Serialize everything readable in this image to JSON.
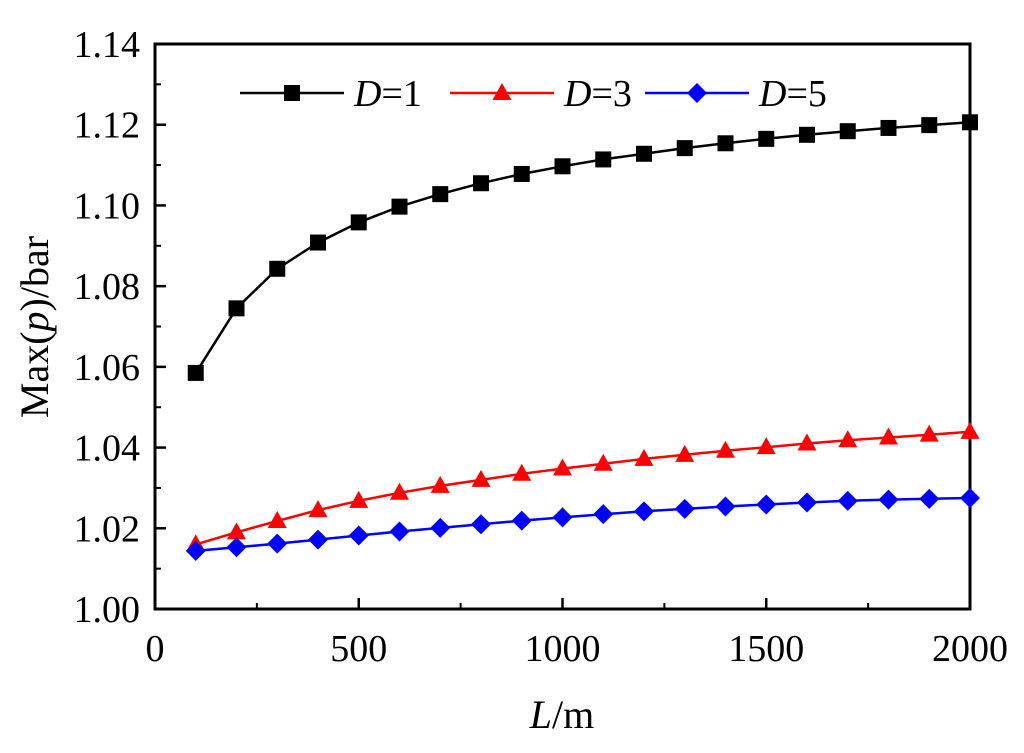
{
  "chart_data": {
    "type": "line",
    "title": "",
    "xlabel": {
      "italic": "L",
      "rest": "/m"
    },
    "ylabel": {
      "pre": "Max(",
      "italic": "p",
      "post": ")/bar"
    },
    "xlim": [
      0,
      2000
    ],
    "ylim": [
      1.0,
      1.14
    ],
    "x_ticks": [
      0,
      500,
      1000,
      1500,
      2000
    ],
    "y_ticks": [
      1.0,
      1.02,
      1.04,
      1.06,
      1.08,
      1.1,
      1.12,
      1.14
    ],
    "x_tick_labels": [
      "0",
      "500",
      "1000",
      "1500",
      "2000"
    ],
    "y_tick_labels": [
      "1.00",
      "1.02",
      "1.04",
      "1.06",
      "1.08",
      "1.10",
      "1.12",
      "1.14"
    ],
    "grid": false,
    "legend_position": "top",
    "x": [
      100,
      200,
      300,
      400,
      500,
      600,
      700,
      800,
      900,
      1000,
      1100,
      1200,
      1300,
      1400,
      1500,
      1600,
      1700,
      1800,
      1900,
      2000
    ],
    "series": [
      {
        "name": {
          "italic": "D",
          "rest": "=1"
        },
        "color": "#000000",
        "marker": "square",
        "values": [
          1.0585,
          1.0745,
          1.0843,
          1.0908,
          1.0958,
          1.0997,
          1.1028,
          1.1055,
          1.1078,
          1.1097,
          1.1114,
          1.1128,
          1.1142,
          1.1154,
          1.1165,
          1.1175,
          1.1184,
          1.1192,
          1.1199,
          1.1206
        ]
      },
      {
        "name": {
          "italic": "D",
          "rest": "=3"
        },
        "color": "#ff0000",
        "marker": "triangle",
        "values": [
          1.016,
          1.019,
          1.0218,
          1.0245,
          1.0268,
          1.0288,
          1.0305,
          1.032,
          1.0335,
          1.0348,
          1.036,
          1.0372,
          1.0382,
          1.0392,
          1.0401,
          1.041,
          1.0418,
          1.0425,
          1.0432,
          1.0439
        ]
      },
      {
        "name": {
          "italic": "D",
          "rest": "=5"
        },
        "color": "#0000ff",
        "marker": "diamond",
        "values": [
          1.0144,
          1.0153,
          1.0162,
          1.0172,
          1.0182,
          1.0192,
          1.0201,
          1.021,
          1.0219,
          1.0227,
          1.0235,
          1.0242,
          1.0248,
          1.0254,
          1.0259,
          1.0264,
          1.0268,
          1.0271,
          1.0273,
          1.0275
        ]
      }
    ]
  }
}
